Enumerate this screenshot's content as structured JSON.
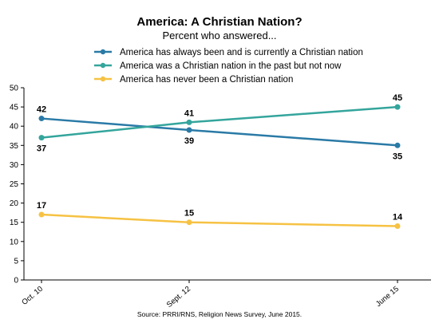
{
  "chart_data": {
    "type": "line",
    "title": "America: A Christian Nation?",
    "subtitle": "Percent who answered...",
    "categories": [
      "Oct. 10",
      "Sept. 12",
      "June 15"
    ],
    "ylim": [
      0,
      50
    ],
    "yticks": [
      0,
      5,
      10,
      15,
      20,
      25,
      30,
      35,
      40,
      45,
      50
    ],
    "grid": false,
    "legend_position": "top",
    "series": [
      {
        "name": "America has always been and is currently a Christian nation",
        "values": [
          42,
          39,
          35
        ],
        "color": "#2a7aa6",
        "label_side": [
          "above",
          "below",
          "below"
        ]
      },
      {
        "name": "America was a Christian nation in the past but not now",
        "values": [
          37,
          41,
          45
        ],
        "color": "#34a59c",
        "label_side": [
          "below",
          "above",
          "above"
        ]
      },
      {
        "name": "America has never been a Christian nation",
        "values": [
          17,
          15,
          14
        ],
        "color": "#f6c243",
        "label_side": [
          "above",
          "above",
          "above"
        ]
      }
    ],
    "source": "Source: PRRI/RNS, Religion News Survey, June 2015."
  }
}
